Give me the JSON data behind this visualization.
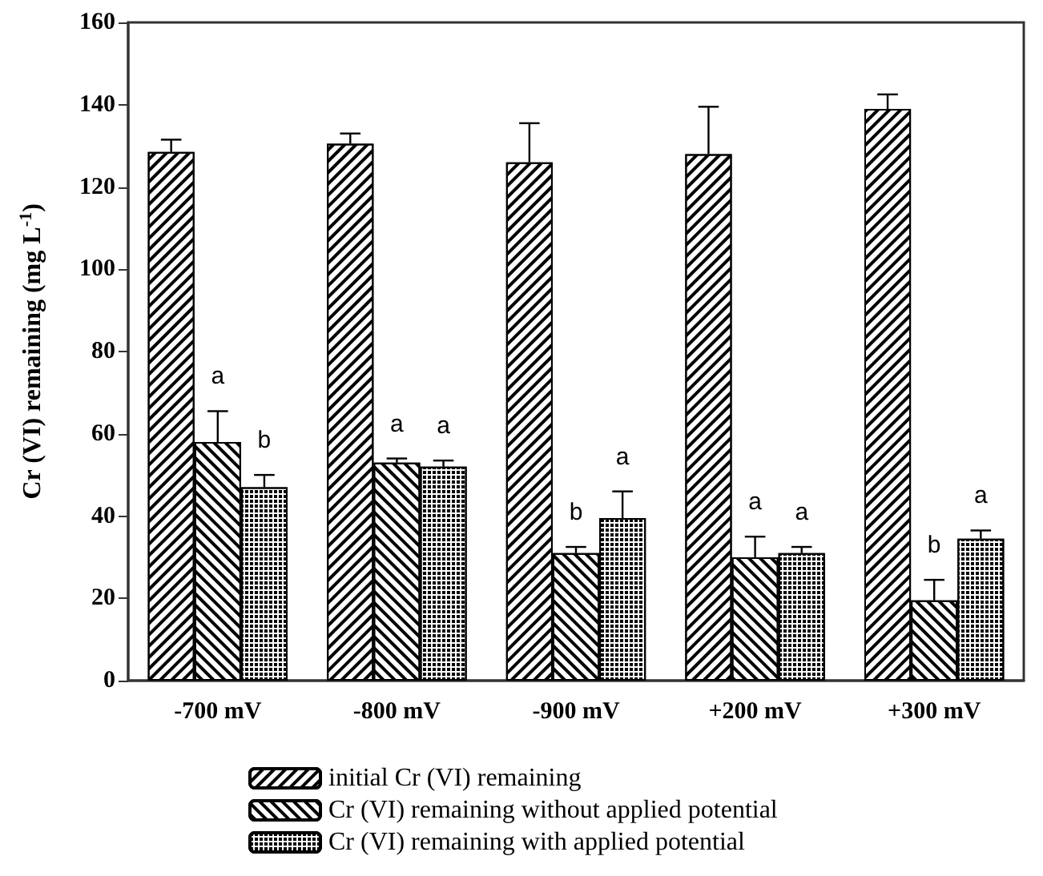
{
  "chart_data": {
    "type": "bar",
    "ylabel": "Cr (VI) remaining (mg L$^{-1}$)",
    "categories": [
      "-700 mV",
      "-800 mV",
      "-900 mV",
      "+200 mV",
      "+300 mV"
    ],
    "series": [
      {
        "name": "initial Cr (VI) remaining",
        "color": "#ffffff",
        "values": [
          128.5,
          130.5,
          126,
          128,
          139
        ],
        "errors": [
          3,
          2.5,
          9.5,
          11.5,
          3.5
        ]
      },
      {
        "name": "Cr (VI) remaining without applied potential",
        "color": "#ffffff",
        "values": [
          58,
          53,
          31,
          30,
          19.5
        ],
        "errors": [
          7.5,
          1,
          1.5,
          5,
          5
        ],
        "value_labels": [
          "a",
          "a",
          "b",
          "a",
          "b"
        ]
      },
      {
        "name": "Cr (VI) remaining with applied potential",
        "color": "#ffffff",
        "values": [
          47,
          52,
          39.5,
          31,
          34.5
        ],
        "errors": [
          3,
          1.5,
          6.5,
          1.5,
          2
        ],
        "value_labels": [
          "b",
          "a",
          "a",
          "a",
          "a"
        ]
      }
    ],
    "ylim": [
      0,
      160
    ],
    "yticks": [
      0,
      20,
      40,
      60,
      80,
      100,
      120,
      140,
      160
    ],
    "grid": false,
    "legend": "bottom"
  }
}
